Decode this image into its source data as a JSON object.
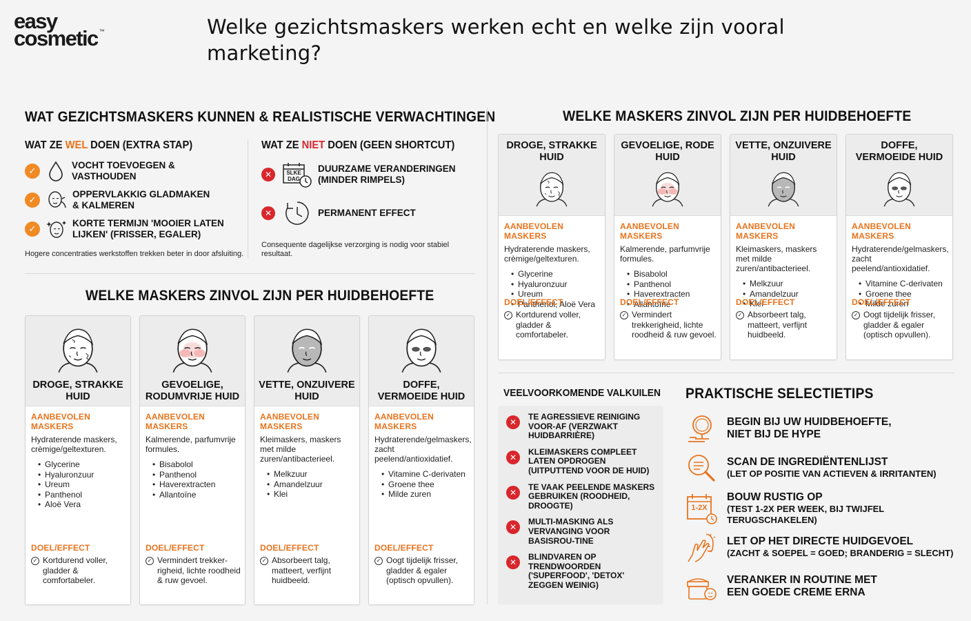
{
  "logo": {
    "line1": "easy",
    "line2": "cosmetic",
    "tm": "™"
  },
  "title": "Welke gezichtsmaskers werken echt en welke zijn vooral marketing?",
  "section_can": {
    "heading": "WAT GEZICHTSMASKERS KUNNEN & REALISTISCHE VERWACHTINGEN",
    "wel": {
      "pre": "WAT ZE ",
      "hl": "WEL",
      "post": " DOEN (EXTRA STAP)",
      "items": [
        {
          "icon": "droplet-icon",
          "text": "VOCHT TOEVOEGEN & VASTHOUDEN"
        },
        {
          "icon": "face-smooth-icon",
          "text": "OPPERVLAKKIG GLADMAKEN & KALMEREN"
        },
        {
          "icon": "face-sparkle-icon",
          "text": "KORTE TERMIJN 'MOOIER LATEN LIJKEN' (FRISSER, EGALER)"
        }
      ],
      "note": "Hogere concentraties werkstoffen trekken beter in door afsluiting."
    },
    "niet": {
      "pre": "WAT ZE ",
      "hl": "NIET",
      "post": " DOEN (GEEN SHORTCUT)",
      "items": [
        {
          "icon": "calendar-clock-icon",
          "icon_text": "SLKE DAG",
          "text": "DUURZAME VERANDERINGEN (MINDER RIMPELS)"
        },
        {
          "icon": "clock-icon",
          "text": "PERMANENT EFFECT"
        }
      ],
      "note": "Consequente dagelijkse verzorging is nodig voor stabiel resultaat."
    }
  },
  "section_left": {
    "heading": "WELKE MASKERS ZINVOL ZIJN PER HUIDBEHOEFTE",
    "cards": [
      {
        "title": "DROGE, STRAKKE HUID",
        "face": "dry",
        "label_rec": "AANBEVOLEN MASKERS",
        "desc": "Hydraterende maskers, crèmige/geltexturen.",
        "bullets": [
          "Glycerine",
          "Hyaluronzuur",
          "Ureum",
          "Panthenol",
          "Aloë Vera"
        ],
        "label_eff": "DOEL/EFFECT",
        "effect": "Kortdurend voller, gladder & comfortabeler."
      },
      {
        "title": "GEVOELIGE, RODUMVRIJE HUID",
        "face": "red",
        "label_rec": "AANBEVOLEN MASKERS",
        "desc": "Kalmerende, parfumvrije formules.",
        "bullets": [
          "Bisabolol",
          "Panthenol",
          "Haverextracten",
          "Allantoïne"
        ],
        "label_eff": "DOEL/EFFECT",
        "effect": "Vermindert trekker-righeid, lichte roodheid & ruw gevoel."
      },
      {
        "title": "VETTE, ONZUIVERE HUID",
        "face": "clay",
        "label_rec": "AANBEVOLEN MASKERS",
        "desc": "Kleimaskers, maskers met milde zuren/antibacterieel.",
        "bullets": [
          "Melkzuur",
          "Amandelzuur",
          "Klei"
        ],
        "label_eff": "DOEL/EFFECT",
        "effect": "Absorbeert talg, matteert, verfijnt huidbeeld."
      },
      {
        "title": "DOFFE, VERMOEIDE HUID",
        "face": "tired",
        "label_rec": "AANBEVOLEN MASKERS",
        "desc": "Hydraterende/gelmaskers, zacht peelend/antioxidatief.",
        "bullets": [
          "Vitamine C-derivaten",
          "Groene thee",
          "Milde zuren"
        ],
        "label_eff": "DOEL/EFFECT",
        "effect": "Oogt tijdelijk frisser, gladder & egaler (optisch opvullen)."
      }
    ]
  },
  "section_right": {
    "heading": "WELKE MASKERS ZINVOL ZIJN PER HUIDBEHOEFTE",
    "cards": [
      {
        "title": "DROGE, STRAKKE HUID",
        "face": "dry",
        "label_rec": "AANBEVOLEN MASKERS",
        "desc": "Hydraterende maskers, crèmige/geltexturen.",
        "bullets": [
          "Glycerine",
          "Hyaluronzuur",
          "Ureum",
          "Panthenol, Aloë Vera"
        ],
        "label_eff": "DOEL/EFFECT",
        "effect": "Kortdurend voller, gladder & comfortabeler."
      },
      {
        "title": "GEVOELIGE, RODE HUID",
        "face": "red",
        "label_rec": "AANBEVOLEN MASKERS",
        "desc": "Kalmerende, parfumvrije formules.",
        "bullets": [
          "Bisabolol",
          "Panthenol",
          "Haverextracten",
          "Allantoïne"
        ],
        "label_eff": "DOEL/EFFECT",
        "effect": "Vermindert trekkerigheid, lichte roodheid & ruw gevoel."
      },
      {
        "title": "VETTE, ONZUIVERE HUID",
        "face": "clay",
        "label_rec": "AANBEVOLEN MASKERS",
        "desc": "Kleimaskers, maskers met milde zuren/antibacterieel.",
        "bullets": [
          "Melkzuur",
          "Amandelzuur",
          "Klei"
        ],
        "label_eff": "DOEL/EFFECT",
        "effect": "Absorbeert talg, matteert, verfijnt huidbeeld."
      },
      {
        "title": "DOFFE, VERMOEIDE HUID",
        "face": "tired",
        "label_rec": "AANBEVOLEN MASKERS",
        "desc": "Hydraterende/gelmaskers, zacht peelend/antioxidatief.",
        "bullets": [
          "Vitamine C-derivaten",
          "Groene thee",
          "Milde zuren"
        ],
        "label_eff": "DOEL/EFFECT",
        "effect": "Oogt tijdelijk frisser, gladder & egaler (optisch opvullen)."
      }
    ]
  },
  "pitfalls": {
    "heading": "VEELVOORKOMENDE VALKUILEN",
    "items": [
      "TE AGRESSIEVE REINIGING VOOR-AF (VERZWAKT HUIDBARRIÈRE)",
      "KLEIMASKERS COMPLEET LATEN OPDROGEN (UITPUTTEND VOOR DE HUID)",
      "TE VAAK PEELENDE MASKERS GEBRUIKEN (ROODHEID, DROOGTE)",
      "MULTI-MASKING ALS VERVANGING VOOR BASISROU-TINE",
      "BLINDVAREN OP TRENDWOORDEN ('SUPERFOOD', 'DETOX' ZEGGEN WEINIG)"
    ]
  },
  "tips": {
    "heading": "PRAKTISCHE SELECTIETIPS",
    "items": [
      {
        "icon": "mirror-icon",
        "title": "BEGIN BIJ UW HUIDBEHOEFTE, NIET BIJ DE HYPE",
        "sub": ""
      },
      {
        "icon": "magnifier-icon",
        "title": "SCAN DE INGREDIËNTENLIJST",
        "sub": "(LET OP POSITIE VAN ACTIEVEN & IRRITANTEN)"
      },
      {
        "icon": "calendar-icon",
        "icon_text": "1-2X",
        "title": "BOUW RUSTIG OP",
        "sub": "(TEST 1-2X PER WEEK, BIJ TWIJFEL TERUGSCHAKELEN)"
      },
      {
        "icon": "touch-face-icon",
        "title": "LET OP HET DIRECTE HUIDGEVOEL",
        "sub": "(ZACHT & SOEPEL = GOED; BRANDERIG = SLECHT)"
      },
      {
        "icon": "cream-jar-icon",
        "title": "VERANKER IN ROUTINE MET EEN GOEDE CREME ERNA",
        "sub": ""
      }
    ]
  },
  "colors": {
    "accent": "#e8731c",
    "check": "#f08a24",
    "cross": "#d9262c",
    "panel": "#ececec",
    "face_red": "#f4b9b6",
    "face_clay": "#b8b8b8"
  }
}
